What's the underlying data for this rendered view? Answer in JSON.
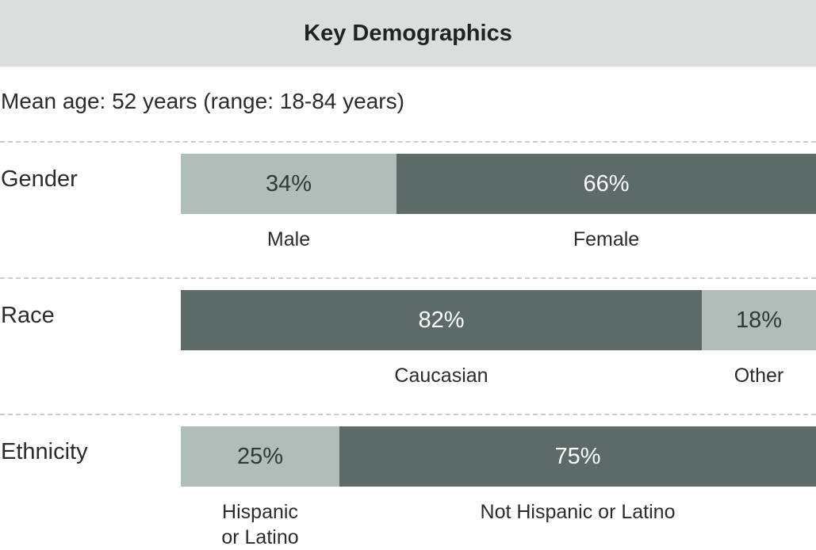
{
  "header": {
    "title": "Key Demographics"
  },
  "summary": {
    "mean_age": "Mean age: 52 years (range: 18-84 years)"
  },
  "colors": {
    "light": "#b1bdb9",
    "dark": "#5d6b68",
    "header_bg": "#d8dfdc"
  },
  "chart_data": {
    "type": "bar",
    "stacked": true,
    "orientation": "horizontal",
    "title": "Key Demographics",
    "rows": [
      {
        "label": "Gender",
        "segments": [
          {
            "name": "Male",
            "value": 34,
            "display": "34%",
            "shade": "light"
          },
          {
            "name": "Female",
            "value": 66,
            "display": "66%",
            "shade": "dark"
          }
        ]
      },
      {
        "label": "Race",
        "segments": [
          {
            "name": "Caucasian",
            "value": 82,
            "display": "82%",
            "shade": "dark"
          },
          {
            "name": "Other",
            "value": 18,
            "display": "18%",
            "shade": "light"
          }
        ]
      },
      {
        "label": "Ethnicity",
        "segments": [
          {
            "name": "Hispanic\nor Latino",
            "value": 25,
            "display": "25%",
            "shade": "light"
          },
          {
            "name": "Not Hispanic or Latino",
            "value": 75,
            "display": "75%",
            "shade": "dark"
          }
        ]
      }
    ]
  }
}
